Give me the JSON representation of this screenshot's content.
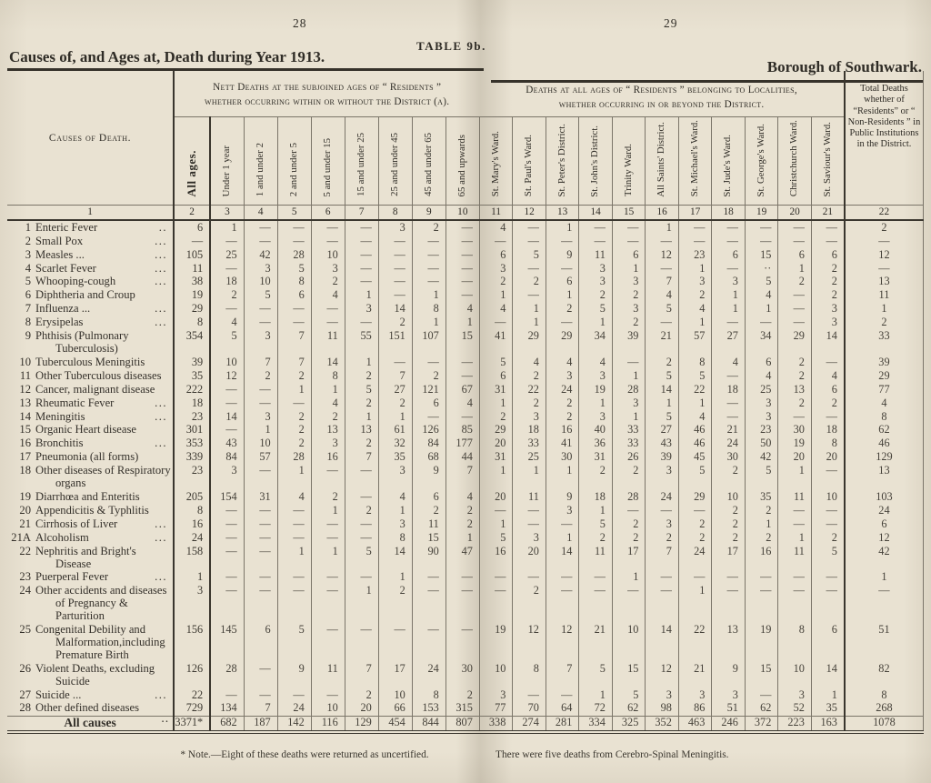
{
  "page": {
    "left_page_number": "28",
    "right_page_number": "29",
    "table_label": "TABLE 9b.",
    "left_title": "Causes of, and Ages at, Death during Year 1913.",
    "right_title": "Borough of Southwark."
  },
  "table": {
    "causes_header": "Causes of Death.",
    "group1_header": "Nett Deaths at the subjoined ages of “ Residents ” whether occurring within or without the District (a).",
    "group2_header": "Deaths at all ages of “ Residents ” belonging to Localities, whether occurring in or beyond the District.",
    "total_header": "Total Deaths whether of “Residents” or “ Non-Residents ” in Public Institutions in the District.",
    "age_columns": [
      "All ages.",
      "Under 1 year",
      "1 and under 2",
      "2 and under 5",
      "5 and under 15",
      "15 and under 25",
      "25 and under 45",
      "45 and under 65",
      "65 and upwards"
    ],
    "ward_columns": [
      "St. Mary's Ward.",
      "St. Paul's Ward.",
      "St. Peter's District.",
      "St. John's District.",
      "Trinity Ward.",
      "All Saints' District.",
      "St. Michael's Ward.",
      "St. Jude's Ward.",
      "St. George's Ward.",
      "Christchurch Ward.",
      "St. Saviour's Ward."
    ],
    "column_numbers": [
      "1",
      "2",
      "3",
      "4",
      "5",
      "6",
      "7",
      "8",
      "9",
      "10",
      "11",
      "12",
      "13",
      "14",
      "15",
      "16",
      "17",
      "18",
      "19",
      "20",
      "21",
      "22"
    ],
    "rows": [
      {
        "num": "1",
        "cause": "Enteric Fever",
        "dots": "..",
        "values": [
          "6",
          "1",
          "—",
          "—",
          "—",
          "—",
          "3",
          "2",
          "—",
          "4",
          "—",
          "1",
          "—",
          "—",
          "1",
          "—",
          "—",
          "—",
          "—",
          "—",
          "2"
        ]
      },
      {
        "num": "2",
        "cause": "Small Pox",
        "dots": "...",
        "values": [
          "—",
          "—",
          "—",
          "—",
          "—",
          "—",
          "—",
          "—",
          "—",
          "—",
          "—",
          "—",
          "—",
          "—",
          "—",
          "—",
          "—",
          "—",
          "—",
          "—",
          "—"
        ]
      },
      {
        "num": "3",
        "cause": "Measles ...",
        "dots": "...",
        "values": [
          "105",
          "25",
          "42",
          "28",
          "10",
          "—",
          "—",
          "—",
          "—",
          "6",
          "5",
          "9",
          "11",
          "6",
          "12",
          "23",
          "6",
          "15",
          "6",
          "6",
          "12"
        ]
      },
      {
        "num": "4",
        "cause": "Scarlet Fever",
        "dots": "...",
        "values": [
          "11",
          "—",
          "3",
          "5",
          "3",
          "—",
          "—",
          "—",
          "—",
          "3",
          "—",
          "—",
          "3",
          "1",
          "—",
          "1",
          "—",
          "··",
          "1",
          "2",
          "—"
        ]
      },
      {
        "num": "5",
        "cause": "Whooping-cough",
        "dots": "...",
        "values": [
          "38",
          "18",
          "10",
          "8",
          "2",
          "—",
          "—",
          "—",
          "—",
          "2",
          "2",
          "6",
          "3",
          "3",
          "7",
          "3",
          "3",
          "5",
          "2",
          "2",
          "13"
        ]
      },
      {
        "num": "6",
        "cause": "Diphtheria and Croup",
        "dots": "",
        "values": [
          "19",
          "2",
          "5",
          "6",
          "4",
          "1",
          "—",
          "1",
          "—",
          "1",
          "—",
          "1",
          "2",
          "2",
          "4",
          "2",
          "1",
          "4",
          "—",
          "2",
          "11"
        ]
      },
      {
        "num": "7",
        "cause": "Influenza ...",
        "dots": "...",
        "values": [
          "29",
          "—",
          "—",
          "—",
          "—",
          "3",
          "14",
          "8",
          "4",
          "4",
          "1",
          "2",
          "5",
          "3",
          "5",
          "4",
          "1",
          "1",
          "—",
          "3",
          "1"
        ]
      },
      {
        "num": "8",
        "cause": "Erysipelas",
        "dots": "...",
        "values": [
          "8",
          "4",
          "—",
          "—",
          "—",
          "—",
          "2",
          "1",
          "1",
          "—",
          "1",
          "—",
          "1",
          "2",
          "—",
          "1",
          "—",
          "—",
          "—",
          "3",
          "2"
        ]
      },
      {
        "num": "9",
        "cause": "Phthisis (Pulmonary Tuberculosis)",
        "dots": "",
        "values": [
          "354",
          "5",
          "3",
          "7",
          "11",
          "55",
          "151",
          "107",
          "15",
          "41",
          "29",
          "29",
          "34",
          "39",
          "21",
          "57",
          "27",
          "34",
          "29",
          "14",
          "33"
        ]
      },
      {
        "num": "10",
        "cause": "Tuberculous Meningitis",
        "dots": "",
        "values": [
          "39",
          "10",
          "7",
          "7",
          "14",
          "1",
          "—",
          "—",
          "—",
          "5",
          "4",
          "4",
          "4",
          "—",
          "2",
          "8",
          "4",
          "6",
          "2",
          "—",
          "39"
        ]
      },
      {
        "num": "11",
        "cause": "Other Tuberculous diseases",
        "dots": "",
        "values": [
          "35",
          "12",
          "2",
          "2",
          "8",
          "2",
          "7",
          "2",
          "—",
          "6",
          "2",
          "3",
          "3",
          "1",
          "5",
          "5",
          "—",
          "4",
          "2",
          "4",
          "29"
        ]
      },
      {
        "num": "12",
        "cause": "Cancer, malignant disease",
        "dots": "",
        "values": [
          "222",
          "—",
          "—",
          "1",
          "1",
          "5",
          "27",
          "121",
          "67",
          "31",
          "22",
          "24",
          "19",
          "28",
          "14",
          "22",
          "18",
          "25",
          "13",
          "6",
          "77"
        ]
      },
      {
        "num": "13",
        "cause": "Rheumatic Fever",
        "dots": "...",
        "values": [
          "18",
          "—",
          "—",
          "—",
          "4",
          "2",
          "2",
          "6",
          "4",
          "1",
          "2",
          "2",
          "1",
          "3",
          "1",
          "1",
          "—",
          "3",
          "2",
          "2",
          "4"
        ]
      },
      {
        "num": "14",
        "cause": "Meningitis",
        "dots": "...",
        "values": [
          "23",
          "14",
          "3",
          "2",
          "2",
          "1",
          "1",
          "—",
          "—",
          "2",
          "3",
          "2",
          "3",
          "1",
          "5",
          "4",
          "—",
          "3",
          "—",
          "—",
          "8"
        ]
      },
      {
        "num": "15",
        "cause": "Organic Heart disease",
        "dots": "",
        "values": [
          "301",
          "—",
          "1",
          "2",
          "13",
          "13",
          "61",
          "126",
          "85",
          "29",
          "18",
          "16",
          "40",
          "33",
          "27",
          "46",
          "21",
          "23",
          "30",
          "18",
          "62"
        ]
      },
      {
        "num": "16",
        "cause": "Bronchitis",
        "dots": "...",
        "values": [
          "353",
          "43",
          "10",
          "2",
          "3",
          "2",
          "32",
          "84",
          "177",
          "20",
          "33",
          "41",
          "36",
          "33",
          "43",
          "46",
          "24",
          "50",
          "19",
          "8",
          "46"
        ]
      },
      {
        "num": "17",
        "cause": "Pneumonia (all forms)",
        "dots": "",
        "values": [
          "339",
          "84",
          "57",
          "28",
          "16",
          "7",
          "35",
          "68",
          "44",
          "31",
          "25",
          "30",
          "31",
          "26",
          "39",
          "45",
          "30",
          "42",
          "20",
          "20",
          "129"
        ]
      },
      {
        "num": "18",
        "cause": "Other diseases of Respiratory organs",
        "dots": "",
        "values": [
          "23",
          "3",
          "—",
          "1",
          "—",
          "—",
          "3",
          "9",
          "7",
          "1",
          "1",
          "1",
          "2",
          "2",
          "3",
          "5",
          "2",
          "5",
          "1",
          "—",
          "13"
        ]
      },
      {
        "num": "19",
        "cause": "Diarrhœa and Enteritis",
        "dots": "",
        "values": [
          "205",
          "154",
          "31",
          "4",
          "2",
          "—",
          "4",
          "6",
          "4",
          "20",
          "11",
          "9",
          "18",
          "28",
          "24",
          "29",
          "10",
          "35",
          "11",
          "10",
          "103"
        ]
      },
      {
        "num": "20",
        "cause": "Appendicitis & Typhlitis",
        "dots": "",
        "values": [
          "8",
          "—",
          "—",
          "—",
          "1",
          "2",
          "1",
          "2",
          "2",
          "—",
          "—",
          "3",
          "1",
          "—",
          "—",
          "—",
          "2",
          "2",
          "—",
          "—",
          "24"
        ]
      },
      {
        "num": "21",
        "cause": "Cirrhosis of Liver",
        "dots": "...",
        "values": [
          "16",
          "—",
          "—",
          "—",
          "—",
          "—",
          "3",
          "11",
          "2",
          "1",
          "—",
          "—",
          "5",
          "2",
          "3",
          "2",
          "2",
          "1",
          "—",
          "—",
          "6"
        ]
      },
      {
        "num": "21A",
        "cause": "Alcoholism",
        "dots": "...",
        "values": [
          "24",
          "—",
          "—",
          "—",
          "—",
          "—",
          "8",
          "15",
          "1",
          "5",
          "3",
          "1",
          "2",
          "2",
          "2",
          "2",
          "2",
          "2",
          "1",
          "2",
          "12"
        ]
      },
      {
        "num": "22",
        "cause": "Nephritis and Bright's Disease",
        "dots": "",
        "values": [
          "158",
          "—",
          "—",
          "1",
          "1",
          "5",
          "14",
          "90",
          "47",
          "16",
          "20",
          "14",
          "11",
          "17",
          "7",
          "24",
          "17",
          "16",
          "11",
          "5",
          "42"
        ]
      },
      {
        "num": "23",
        "cause": "Puerperal Fever",
        "dots": "...",
        "values": [
          "1",
          "—",
          "—",
          "—",
          "—",
          "—",
          "1",
          "—",
          "—",
          "—",
          "—",
          "—",
          "—",
          "1",
          "—",
          "—",
          "—",
          "—",
          "—",
          "—",
          "1"
        ]
      },
      {
        "num": "24",
        "cause": "Other accidents and diseases of Preg­nancy & Parturition",
        "dots": "",
        "values": [
          "3",
          "—",
          "—",
          "—",
          "—",
          "1",
          "2",
          "—",
          "—",
          "—",
          "2",
          "—",
          "—",
          "—",
          "—",
          "1",
          "—",
          "—",
          "—",
          "—",
          "—"
        ]
      },
      {
        "num": "25",
        "cause": "Congenital Debility and Malformation,includ­ing Premature Birth",
        "dots": "",
        "values": [
          "156",
          "145",
          "6",
          "5",
          "—",
          "—",
          "—",
          "—",
          "—",
          "19",
          "12",
          "12",
          "21",
          "10",
          "14",
          "22",
          "13",
          "19",
          "8",
          "6",
          "51"
        ]
      },
      {
        "num": "26",
        "cause": "Violent Deaths, ex­cluding Suicide",
        "dots": "",
        "values": [
          "126",
          "28",
          "—",
          "9",
          "11",
          "7",
          "17",
          "24",
          "30",
          "10",
          "8",
          "7",
          "5",
          "15",
          "12",
          "21",
          "9",
          "15",
          "10",
          "14",
          "82"
        ]
      },
      {
        "num": "27",
        "cause": "Suicide ...",
        "dots": "...",
        "values": [
          "22",
          "—",
          "—",
          "—",
          "—",
          "2",
          "10",
          "8",
          "2",
          "3",
          "—",
          "—",
          "1",
          "5",
          "3",
          "3",
          "3",
          "—",
          "3",
          "1",
          "8"
        ]
      },
      {
        "num": "28",
        "cause": "Other defined diseases",
        "dots": "",
        "values": [
          "729",
          "134",
          "7",
          "24",
          "10",
          "20",
          "66",
          "153",
          "315",
          "77",
          "70",
          "64",
          "72",
          "62",
          "98",
          "86",
          "51",
          "62",
          "52",
          "35",
          "268"
        ]
      }
    ],
    "total_row": {
      "label": "All causes",
      "dots": "..",
      "values": [
        "3371*",
        "682",
        "187",
        "142",
        "116",
        "129",
        "454",
        "844",
        "807",
        "338",
        "274",
        "281",
        "334",
        "325",
        "352",
        "463",
        "246",
        "372",
        "223",
        "163",
        "1078"
      ]
    },
    "footnote_left": "* Note.—Eight of these deaths were returned as uncertified.",
    "footnote_right": "There were five deaths from Cerebro-Spinal Meningitis."
  }
}
